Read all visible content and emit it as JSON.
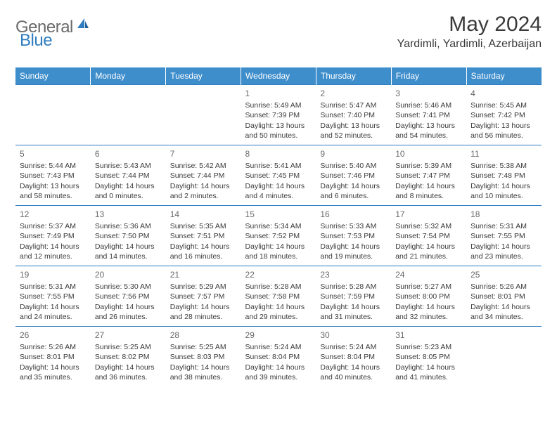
{
  "brand": {
    "general": "General",
    "blue": "Blue"
  },
  "title": "May 2024",
  "location": "Yardimli, Yardimli, Azerbaijan",
  "colors": {
    "header_bg": "#3f8ecc",
    "header_text": "#ffffff",
    "border": "#2f7dc0",
    "text": "#3a3a3a",
    "daynum": "#6a6a6a",
    "logo_gray": "#6a6a6a",
    "logo_blue": "#2f7dc0",
    "page_bg": "#ffffff"
  },
  "weekdays": [
    "Sunday",
    "Monday",
    "Tuesday",
    "Wednesday",
    "Thursday",
    "Friday",
    "Saturday"
  ],
  "weeks": [
    [
      null,
      null,
      null,
      {
        "d": "1",
        "sr": "5:49 AM",
        "ss": "7:39 PM",
        "dl1": "Daylight: 13 hours",
        "dl2": "and 50 minutes."
      },
      {
        "d": "2",
        "sr": "5:47 AM",
        "ss": "7:40 PM",
        "dl1": "Daylight: 13 hours",
        "dl2": "and 52 minutes."
      },
      {
        "d": "3",
        "sr": "5:46 AM",
        "ss": "7:41 PM",
        "dl1": "Daylight: 13 hours",
        "dl2": "and 54 minutes."
      },
      {
        "d": "4",
        "sr": "5:45 AM",
        "ss": "7:42 PM",
        "dl1": "Daylight: 13 hours",
        "dl2": "and 56 minutes."
      }
    ],
    [
      {
        "d": "5",
        "sr": "5:44 AM",
        "ss": "7:43 PM",
        "dl1": "Daylight: 13 hours",
        "dl2": "and 58 minutes."
      },
      {
        "d": "6",
        "sr": "5:43 AM",
        "ss": "7:44 PM",
        "dl1": "Daylight: 14 hours",
        "dl2": "and 0 minutes."
      },
      {
        "d": "7",
        "sr": "5:42 AM",
        "ss": "7:44 PM",
        "dl1": "Daylight: 14 hours",
        "dl2": "and 2 minutes."
      },
      {
        "d": "8",
        "sr": "5:41 AM",
        "ss": "7:45 PM",
        "dl1": "Daylight: 14 hours",
        "dl2": "and 4 minutes."
      },
      {
        "d": "9",
        "sr": "5:40 AM",
        "ss": "7:46 PM",
        "dl1": "Daylight: 14 hours",
        "dl2": "and 6 minutes."
      },
      {
        "d": "10",
        "sr": "5:39 AM",
        "ss": "7:47 PM",
        "dl1": "Daylight: 14 hours",
        "dl2": "and 8 minutes."
      },
      {
        "d": "11",
        "sr": "5:38 AM",
        "ss": "7:48 PM",
        "dl1": "Daylight: 14 hours",
        "dl2": "and 10 minutes."
      }
    ],
    [
      {
        "d": "12",
        "sr": "5:37 AM",
        "ss": "7:49 PM",
        "dl1": "Daylight: 14 hours",
        "dl2": "and 12 minutes."
      },
      {
        "d": "13",
        "sr": "5:36 AM",
        "ss": "7:50 PM",
        "dl1": "Daylight: 14 hours",
        "dl2": "and 14 minutes."
      },
      {
        "d": "14",
        "sr": "5:35 AM",
        "ss": "7:51 PM",
        "dl1": "Daylight: 14 hours",
        "dl2": "and 16 minutes."
      },
      {
        "d": "15",
        "sr": "5:34 AM",
        "ss": "7:52 PM",
        "dl1": "Daylight: 14 hours",
        "dl2": "and 18 minutes."
      },
      {
        "d": "16",
        "sr": "5:33 AM",
        "ss": "7:53 PM",
        "dl1": "Daylight: 14 hours",
        "dl2": "and 19 minutes."
      },
      {
        "d": "17",
        "sr": "5:32 AM",
        "ss": "7:54 PM",
        "dl1": "Daylight: 14 hours",
        "dl2": "and 21 minutes."
      },
      {
        "d": "18",
        "sr": "5:31 AM",
        "ss": "7:55 PM",
        "dl1": "Daylight: 14 hours",
        "dl2": "and 23 minutes."
      }
    ],
    [
      {
        "d": "19",
        "sr": "5:31 AM",
        "ss": "7:55 PM",
        "dl1": "Daylight: 14 hours",
        "dl2": "and 24 minutes."
      },
      {
        "d": "20",
        "sr": "5:30 AM",
        "ss": "7:56 PM",
        "dl1": "Daylight: 14 hours",
        "dl2": "and 26 minutes."
      },
      {
        "d": "21",
        "sr": "5:29 AM",
        "ss": "7:57 PM",
        "dl1": "Daylight: 14 hours",
        "dl2": "and 28 minutes."
      },
      {
        "d": "22",
        "sr": "5:28 AM",
        "ss": "7:58 PM",
        "dl1": "Daylight: 14 hours",
        "dl2": "and 29 minutes."
      },
      {
        "d": "23",
        "sr": "5:28 AM",
        "ss": "7:59 PM",
        "dl1": "Daylight: 14 hours",
        "dl2": "and 31 minutes."
      },
      {
        "d": "24",
        "sr": "5:27 AM",
        "ss": "8:00 PM",
        "dl1": "Daylight: 14 hours",
        "dl2": "and 32 minutes."
      },
      {
        "d": "25",
        "sr": "5:26 AM",
        "ss": "8:01 PM",
        "dl1": "Daylight: 14 hours",
        "dl2": "and 34 minutes."
      }
    ],
    [
      {
        "d": "26",
        "sr": "5:26 AM",
        "ss": "8:01 PM",
        "dl1": "Daylight: 14 hours",
        "dl2": "and 35 minutes."
      },
      {
        "d": "27",
        "sr": "5:25 AM",
        "ss": "8:02 PM",
        "dl1": "Daylight: 14 hours",
        "dl2": "and 36 minutes."
      },
      {
        "d": "28",
        "sr": "5:25 AM",
        "ss": "8:03 PM",
        "dl1": "Daylight: 14 hours",
        "dl2": "and 38 minutes."
      },
      {
        "d": "29",
        "sr": "5:24 AM",
        "ss": "8:04 PM",
        "dl1": "Daylight: 14 hours",
        "dl2": "and 39 minutes."
      },
      {
        "d": "30",
        "sr": "5:24 AM",
        "ss": "8:04 PM",
        "dl1": "Daylight: 14 hours",
        "dl2": "and 40 minutes."
      },
      {
        "d": "31",
        "sr": "5:23 AM",
        "ss": "8:05 PM",
        "dl1": "Daylight: 14 hours",
        "dl2": "and 41 minutes."
      },
      null
    ]
  ],
  "labels": {
    "sunrise": "Sunrise: ",
    "sunset": "Sunset: "
  }
}
